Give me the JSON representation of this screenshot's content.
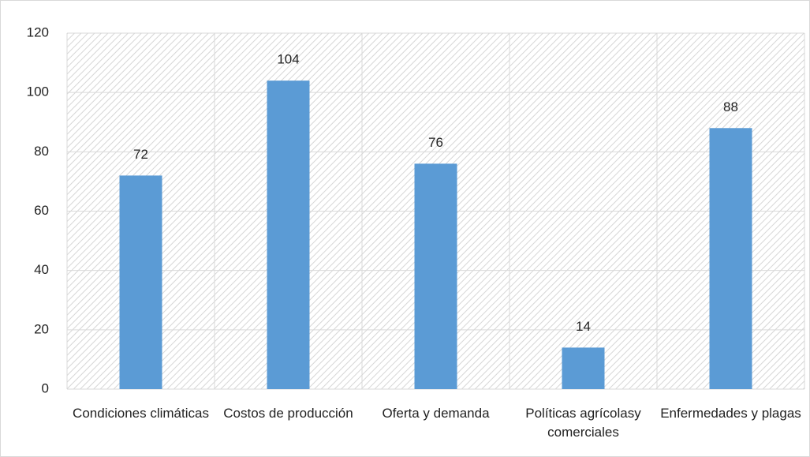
{
  "chart_data": {
    "type": "bar",
    "categories": [
      "Condiciones climáticas",
      "Costos de producción",
      "Oferta y demanda",
      "Políticas agrícolasy comerciales",
      "Enfermedades y plagas"
    ],
    "values": [
      72,
      104,
      76,
      14,
      88
    ],
    "color": "#5b9bd5",
    "ylim": [
      0,
      120
    ],
    "yticks": [
      0,
      20,
      40,
      60,
      80,
      100,
      120
    ],
    "grid": true
  }
}
